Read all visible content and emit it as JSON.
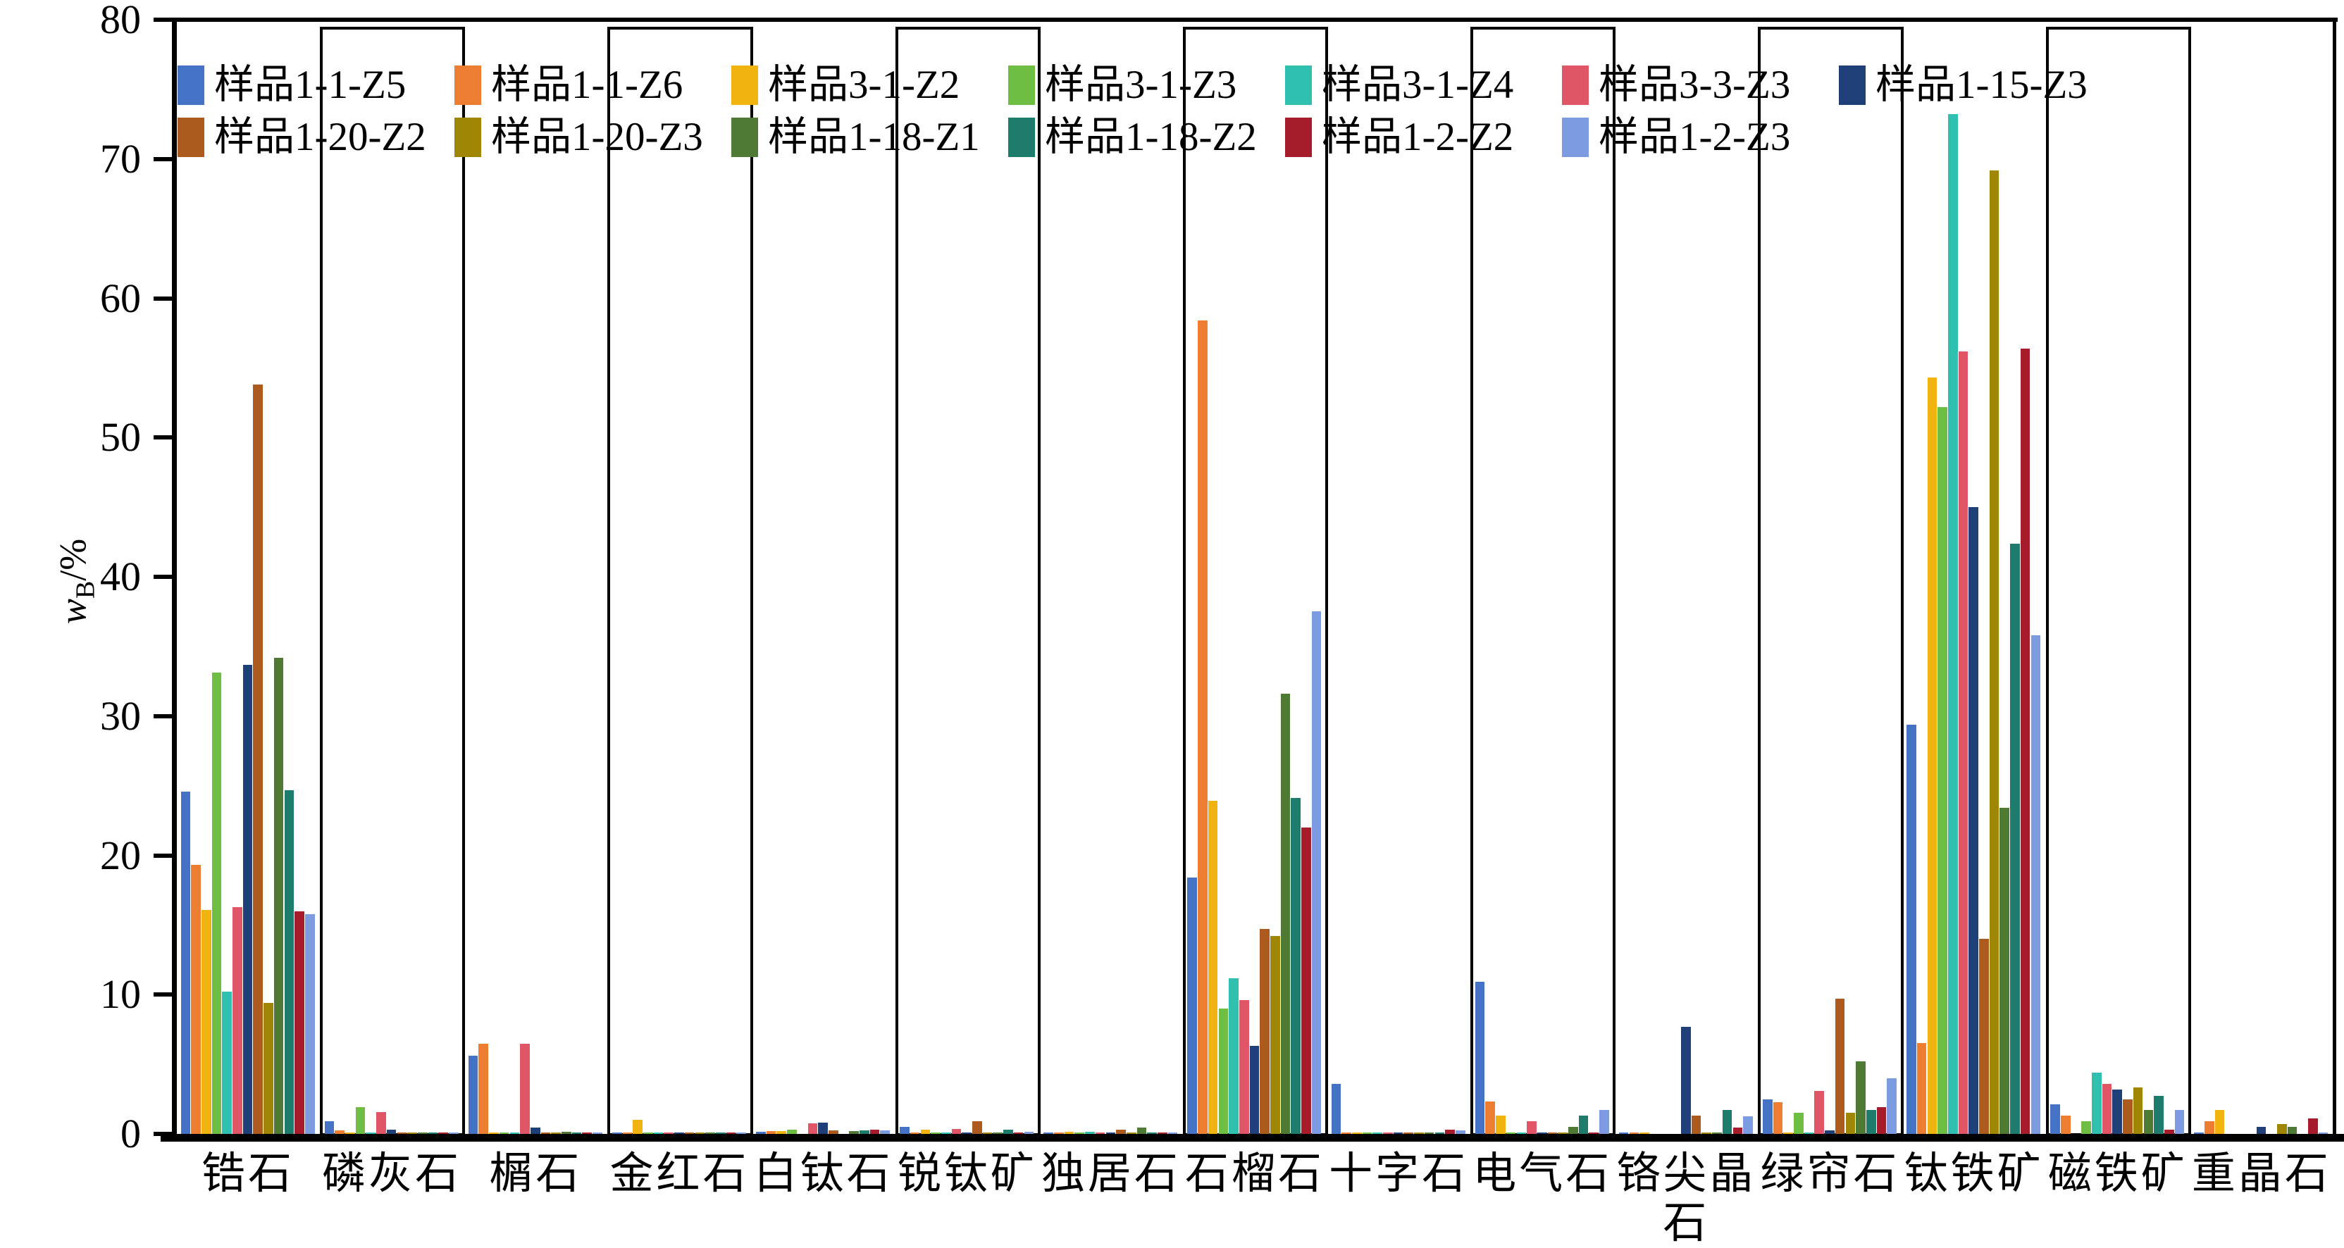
{
  "chart_data": {
    "type": "bar",
    "title": "",
    "xlabel": "",
    "ylabel_main": "w",
    "ylabel_sub": "B",
    "ylabel_unit": "/%",
    "ylim": [
      0,
      80
    ],
    "yticks": [
      0,
      10,
      20,
      30,
      40,
      50,
      60,
      70,
      80
    ],
    "grid": false,
    "legend_position": "top-left-inside",
    "boxed_categories": [
      "磷灰石",
      "金红石",
      "锐钛矿",
      "石榴石",
      "电气石",
      "绿帘石",
      "磁铁矿"
    ],
    "categories": [
      "锆石",
      "磷灰石",
      "榍石",
      "金红石",
      "白钛石",
      "锐钛矿",
      "独居石",
      "石榴石",
      "十字石",
      "电气石",
      "铬尖晶石",
      "绿帘石",
      "钛铁矿",
      "磁铁矿",
      "重晶石"
    ],
    "series": [
      {
        "name": "样品1-1-Z5",
        "color": "#4472C4",
        "values": [
          24.6,
          0.9,
          5.6,
          0.05,
          0.15,
          0.5,
          0.05,
          18.4,
          3.6,
          10.9,
          0.05,
          2.5,
          29.4,
          2.1,
          0.1
        ]
      },
      {
        "name": "样品1-1-Z6",
        "color": "#ED7D31",
        "values": [
          19.3,
          0.25,
          6.45,
          0.1,
          0.2,
          0.1,
          0.05,
          58.4,
          0.05,
          2.35,
          0.05,
          2.3,
          6.5,
          1.3,
          0.9
        ]
      },
      {
        "name": "样品3-1-Z2",
        "color": "#F1B310",
        "values": [
          16.1,
          0.12,
          0.05,
          1.0,
          0.2,
          0.3,
          0.15,
          23.9,
          0.12,
          1.3,
          0.12,
          0.05,
          54.3,
          0,
          1.7
        ]
      },
      {
        "name": "样品3-1-Z3",
        "color": "#6FBE44",
        "values": [
          33.1,
          1.9,
          0.05,
          0.05,
          0.3,
          0.1,
          0.12,
          9.0,
          0.05,
          0.1,
          0,
          1.5,
          52.2,
          0.9,
          0
        ]
      },
      {
        "name": "样品3-1-Z4",
        "color": "#2FC0B0",
        "values": [
          10.2,
          0.12,
          0.05,
          0.05,
          0,
          0.05,
          0.15,
          11.2,
          0.05,
          0.05,
          0,
          0.05,
          73.2,
          4.4,
          0
        ]
      },
      {
        "name": "样品3-3-Z3",
        "color": "#E05667",
        "values": [
          16.3,
          1.55,
          6.45,
          0.1,
          0.75,
          0.35,
          0.1,
          9.6,
          0.05,
          0.9,
          0,
          3.1,
          56.2,
          3.6,
          0
        ]
      },
      {
        "name": "样品1-15-Z3",
        "color": "#1E3F77",
        "values": [
          33.7,
          0.3,
          0.45,
          0.1,
          0.8,
          0.1,
          0.05,
          6.3,
          0.05,
          0.1,
          7.7,
          0.26,
          45.0,
          3.2,
          0.5
        ]
      },
      {
        "name": "样品1-20-Z2",
        "color": "#AD5A1F",
        "values": [
          53.8,
          0.1,
          0.05,
          0.1,
          0.25,
          0.9,
          0.3,
          14.7,
          0.05,
          0.1,
          1.3,
          9.7,
          14.0,
          2.5,
          0
        ]
      },
      {
        "name": "样品1-20-Z3",
        "color": "#A08605",
        "values": [
          9.4,
          0.1,
          0.05,
          0.05,
          0,
          0.1,
          0.12,
          14.2,
          0.05,
          0.1,
          0.1,
          1.5,
          69.2,
          3.35,
          0.7
        ]
      },
      {
        "name": "样品1-18-Z1",
        "color": "#4E7A34",
        "values": [
          34.2,
          0.08,
          0.15,
          0.05,
          0.2,
          0.1,
          0.45,
          31.6,
          0.05,
          0.5,
          0.12,
          5.2,
          23.4,
          1.7,
          0.5
        ]
      },
      {
        "name": "样品1-18-Z2",
        "color": "#1D7C6C",
        "values": [
          24.7,
          0.08,
          0.05,
          0.05,
          0.25,
          0.3,
          0.1,
          24.1,
          0.05,
          1.3,
          1.7,
          1.7,
          42.4,
          2.75,
          0
        ]
      },
      {
        "name": "样品1-2-Z2",
        "color": "#A61C2B",
        "values": [
          16.0,
          0.12,
          0.05,
          0.1,
          0.3,
          0.05,
          0.12,
          22.0,
          0.3,
          0.05,
          0.46,
          1.9,
          56.4,
          0.3,
          1.1
        ]
      },
      {
        "name": "样品1-2-Z3",
        "color": "#7C9BE0",
        "values": [
          15.8,
          0.12,
          0.05,
          0.1,
          0.25,
          0.15,
          0.12,
          37.5,
          0.27,
          1.7,
          1.27,
          4.0,
          35.8,
          1.7,
          0.1
        ]
      }
    ]
  },
  "axes": {
    "y": {
      "label_main": "w",
      "label_sub": "B",
      "label_unit": "/%"
    }
  }
}
